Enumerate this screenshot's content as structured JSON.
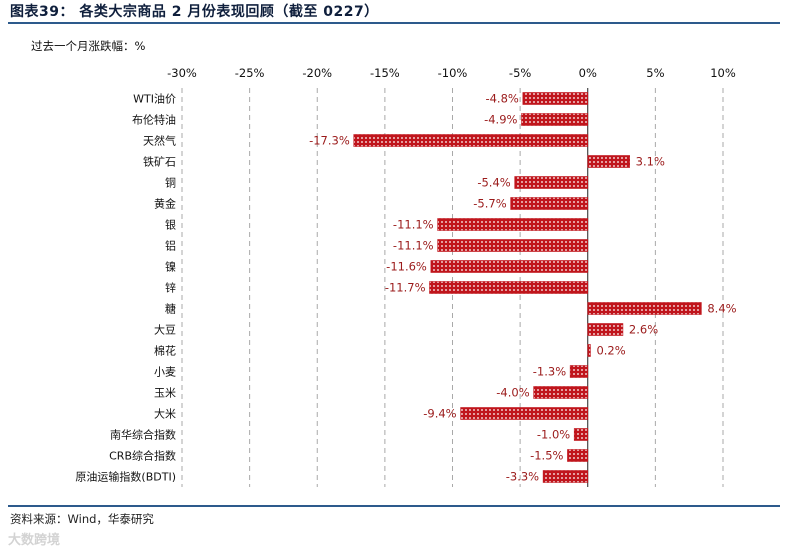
{
  "header": {
    "title": "图表39：  各类大宗商品 2 月份表现回顾（截至 0227）"
  },
  "footer": {
    "source": "资料来源：Wind，华泰研究",
    "watermark": "大数跨境"
  },
  "chart_data": {
    "type": "bar",
    "orientation": "horizontal",
    "title": "各类大宗商品 2 月份表现回顾（截至 0227）",
    "ylabel": "过去一个月涨跌幅：%",
    "xlim": [
      -30,
      10
    ],
    "xticks": [
      -30,
      -25,
      -20,
      -15,
      -10,
      -5,
      0,
      5,
      10
    ],
    "xtick_labels": [
      "-30%",
      "-25%",
      "-20%",
      "-15%",
      "-10%",
      "-5%",
      "0%",
      "5%",
      "10%"
    ],
    "tick_position": "top",
    "categories": [
      "WTI油价",
      "布伦特油",
      "天然气",
      "铁矿石",
      "铜",
      "黄金",
      "银",
      "铝",
      "镍",
      "锌",
      "糖",
      "大豆",
      "棉花",
      "小麦",
      "玉米",
      "大米",
      "南华综合指数",
      "CRB综合指数",
      "原油运输指数(BDTI)"
    ],
    "values": [
      -4.8,
      -4.9,
      -17.3,
      3.1,
      -5.4,
      -5.7,
      -11.1,
      -11.1,
      -11.6,
      -11.7,
      8.4,
      2.6,
      0.2,
      -1.3,
      -4.0,
      -9.4,
      -1.0,
      -1.5,
      -3.3
    ],
    "data_labels": [
      "-4.8%",
      "-4.9%",
      "-17.3%",
      "3.1%",
      "-5.4%",
      "-5.7%",
      "-11.1%",
      "-11.1%",
      "-11.6%",
      "-11.7%",
      "8.4%",
      "2.6%",
      "0.2%",
      "-1.3%",
      "-4.0%",
      "-9.4%",
      "-1.0%",
      "-1.5%",
      "-3.3%"
    ],
    "bar_color": "#c0151c",
    "bar_pattern": "dotted",
    "label_color": "#9b1b1b",
    "grid": true
  }
}
